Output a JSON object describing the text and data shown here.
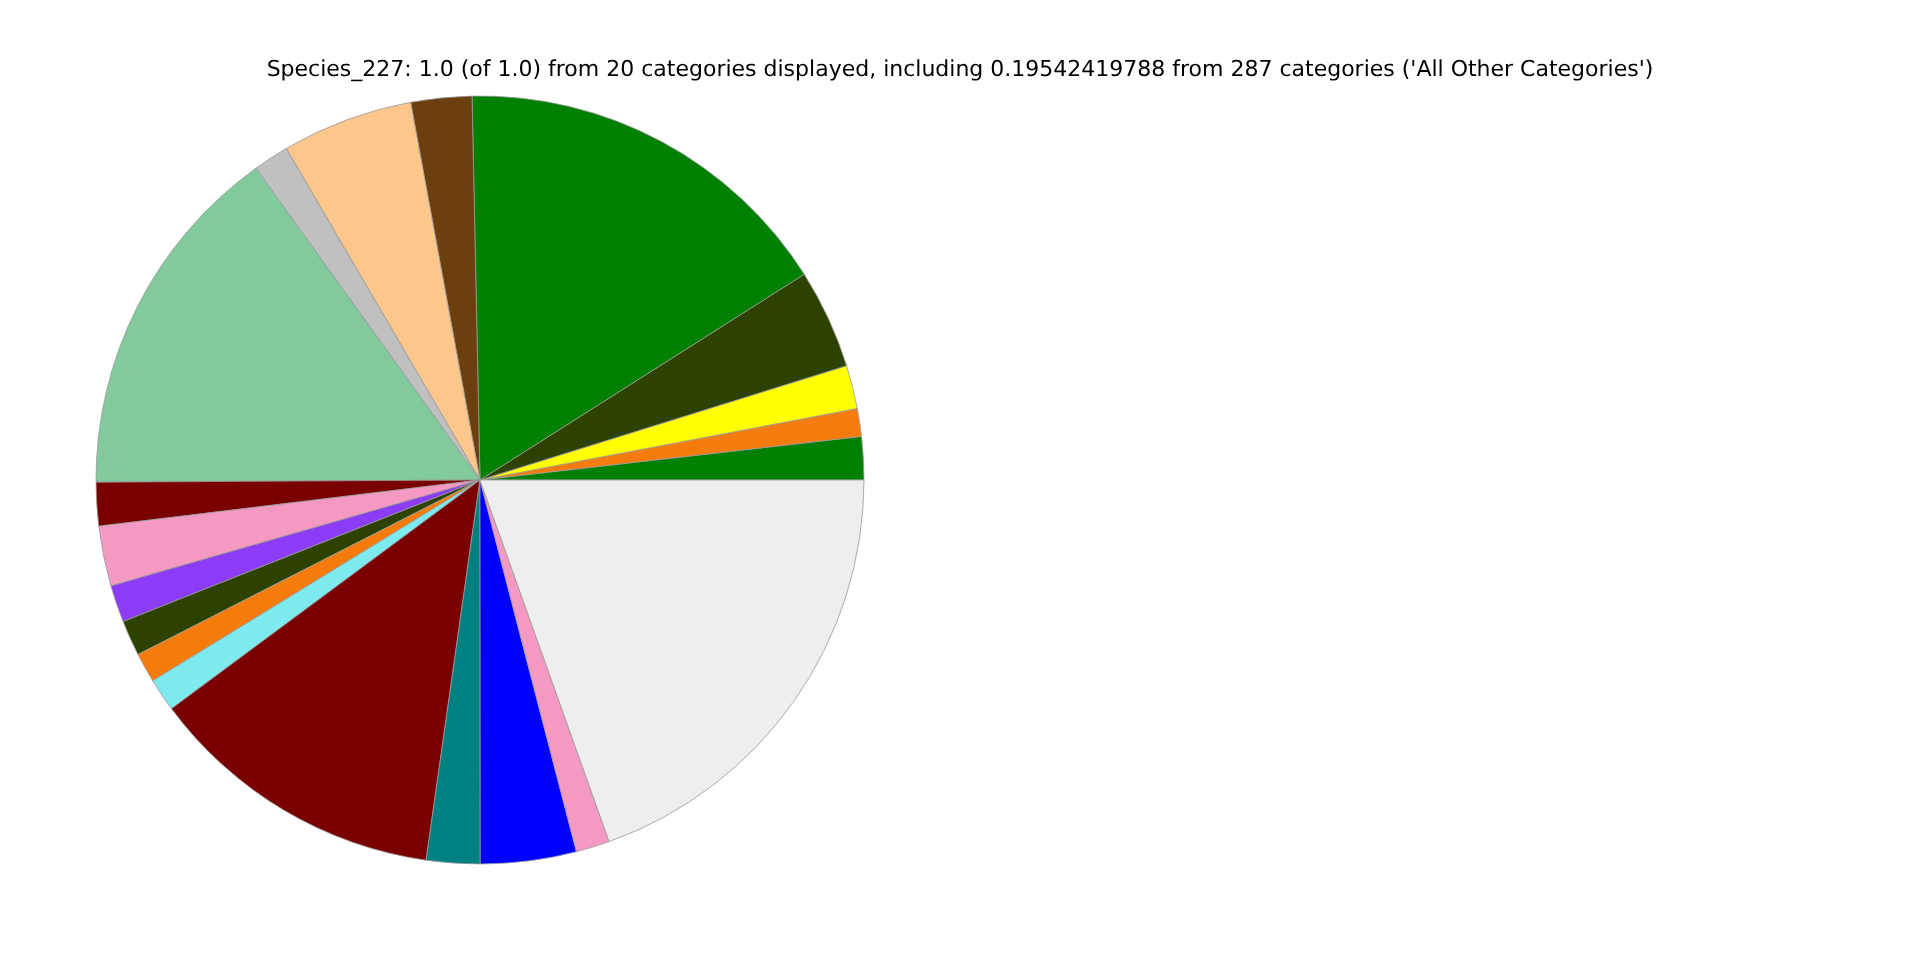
{
  "chart_data": {
    "type": "pie",
    "title": "Species_227: 1.0 (of 1.0) from 20 categories displayed, including 0.19542419788 from 287 categories ('All Other Categories')",
    "categories": [
      null,
      null,
      null,
      null,
      null,
      null,
      null,
      null,
      null,
      null,
      null,
      null,
      null,
      null,
      null,
      null,
      null,
      null,
      null,
      null
    ],
    "values": [
      1.81,
      1.17,
      1.83,
      4.19,
      16.33,
      2.56,
      5.53,
      1.5,
      15.17,
      1.83,
      2.53,
      1.56,
      1.5,
      1.25,
      1.39,
      12.61,
      2.25,
      4.03,
      1.42,
      19.54
    ],
    "colors": [
      "#008000",
      "#f57c0a",
      "#ffff00",
      "#2e4200",
      "#008000",
      "#6b400e",
      "#fdc68a",
      "#c0c0c0",
      "#82c99c",
      "#7a0000",
      "#f49ac2",
      "#8c3cf6",
      "#2e4200",
      "#f57c0a",
      "#7ceaee",
      "#7a0000",
      "#008080",
      "#0000ff",
      "#f49ac2",
      "#eeeeee"
    ]
  }
}
